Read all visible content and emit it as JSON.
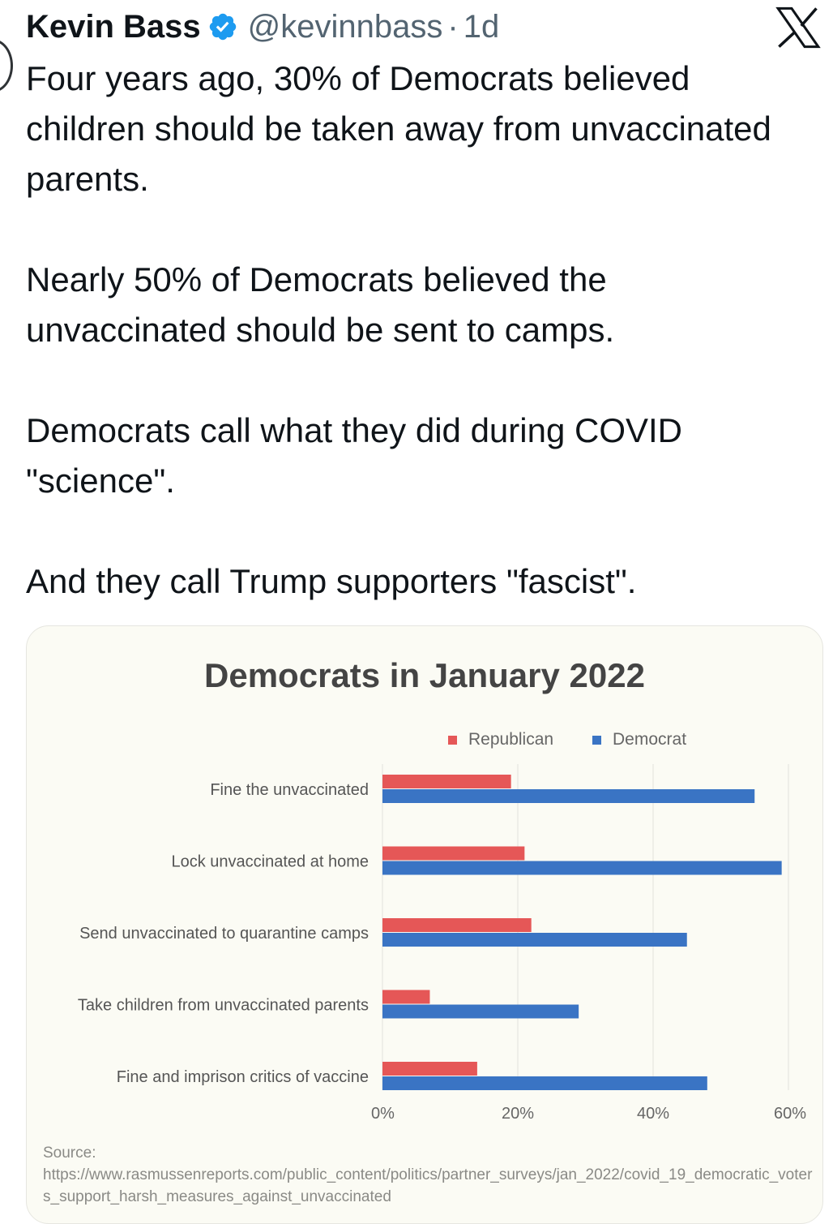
{
  "tweet": {
    "author_name": "Kevin Bass",
    "handle": "@kevinnbass",
    "separator": "·",
    "time": "1d",
    "paragraphs": [
      "Four years ago, 30% of Democrats believed children should be taken away from unvaccinated parents.",
      "Nearly 50% of Democrats believed the unvaccinated should be sent to camps.",
      "Democrats call what they did during COVID \"science\".",
      "And they call Trump supporters \"fascist\"."
    ]
  },
  "icons": {
    "verified": "verified-badge-icon",
    "brand": "x-logo-icon"
  },
  "colors": {
    "verified": "#1d9bf0",
    "republican": "#e55757",
    "democrat": "#3a74c4"
  },
  "chart_data": {
    "type": "bar",
    "orientation": "horizontal",
    "title": "Democrats in January 2022",
    "categories": [
      "Fine the unvaccinated",
      "Lock unvaccinated at home",
      "Send unvaccinated to quarantine camps",
      "Take children from unvaccinated parents",
      "Fine and imprison critics of vaccine"
    ],
    "series": [
      {
        "name": "Republican",
        "color": "#e55757",
        "values": [
          19,
          21,
          22,
          7,
          14
        ]
      },
      {
        "name": "Democrat",
        "color": "#3a74c4",
        "values": [
          55,
          59,
          45,
          29,
          48
        ]
      }
    ],
    "xlim": [
      0,
      60
    ],
    "x_ticks": [
      "0%",
      "20%",
      "40%",
      "60%"
    ],
    "x_tick_values": [
      0,
      20,
      40,
      60
    ],
    "legend_position": "top",
    "grid": true,
    "source_label": "Source:",
    "source_url": "https://www.rasmussenreports.com/public_content/politics/partner_surveys/jan_2022/covid_19_democratic_voters_support_harsh_measures_against_unvaccinated"
  }
}
